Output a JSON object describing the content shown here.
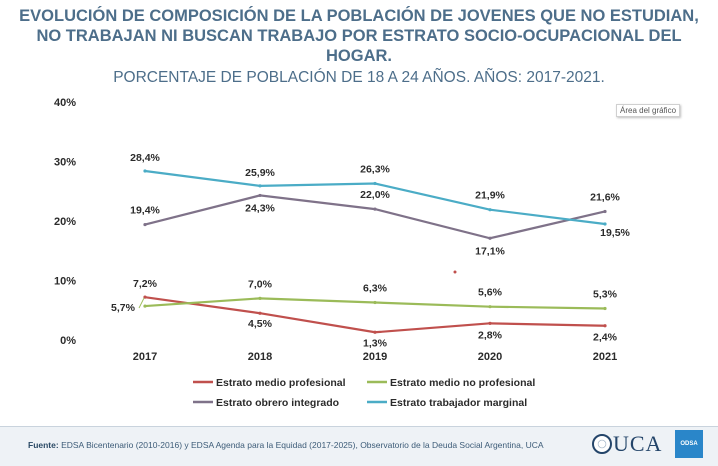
{
  "chart_data": {
    "type": "line",
    "title": "EVOLUCIÓN DE COMPOSICIÓN DE LA POBLACIÓN DE JOVENES QUE NO ESTUDIAN, NO TRABAJAN NI BUSCAN TRABAJO POR ESTRATO SOCIO-OCUPACIONAL DEL HOGAR.",
    "subtitle": "PORCENTAJE DE POBLACIÓN DE 18 A 24 AÑOS. AÑOS: 2017-2021.",
    "title_lines": [
      "EVOLUCIÓN DE COMPOSICIÓN DE LA POBLACIÓN DE JOVENES QUE NO ESTUDIAN,",
      "NO TRABAJAN NI BUSCAN TRABAJO POR ESTRATO SOCIO-OCUPACIONAL DEL",
      "HOGAR."
    ],
    "x": [
      "2017",
      "2018",
      "2019",
      "2020",
      "2021"
    ],
    "ylim": [
      0,
      40
    ],
    "yticks": [
      "0%",
      "10%",
      "20%",
      "30%",
      "40%"
    ],
    "grid": false,
    "legend_position": "bottom",
    "series": [
      {
        "name": "Estrato medio profesional",
        "color": "#c0504d",
        "values": [
          7.2,
          4.5,
          1.3,
          2.8,
          2.4
        ],
        "labels": [
          "7,2%",
          "4,5%",
          "1,3%",
          "2,8%",
          "2,4%"
        ]
      },
      {
        "name": "Estrato medio no profesional",
        "color": "#9bbb59",
        "values": [
          5.7,
          7.0,
          6.3,
          5.6,
          5.3
        ],
        "labels": [
          "5,7%",
          "7,0%",
          "6,3%",
          "5,6%",
          "5,3%"
        ]
      },
      {
        "name": "Estrato obrero integrado",
        "color": "#7f7289",
        "values": [
          19.4,
          24.3,
          22.0,
          17.1,
          21.6
        ],
        "labels": [
          "19,4%",
          "24,3%",
          "22,0%",
          "17,1%",
          "21,6%"
        ]
      },
      {
        "name": "Estrato trabajador marginal",
        "color": "#4bacc6",
        "values": [
          28.4,
          25.9,
          26.3,
          21.9,
          19.5
        ],
        "labels": [
          "28,4%",
          "25,9%",
          "26,3%",
          "21,9%",
          "19,5%"
        ]
      }
    ],
    "chart_area_label": "Área del gráfico"
  },
  "footer": {
    "source_label": "Fuente:",
    "source_text": "EDSA Bicentenario (2010-2016) y EDSA Agenda para la Equidad (2017-2025), Observatorio de la Deuda Social Argentina, UCA",
    "logo_text": "UCA",
    "badge_text": "ODSA"
  }
}
